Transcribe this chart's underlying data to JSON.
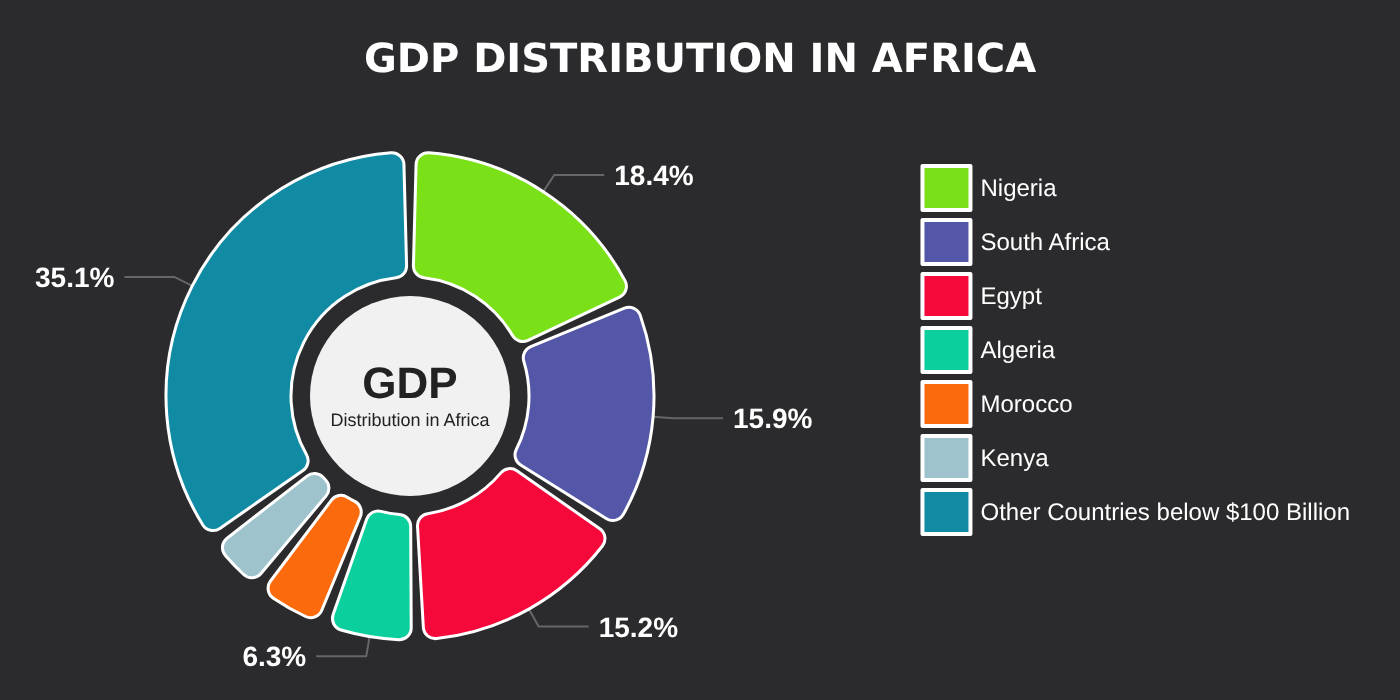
{
  "chart_data": {
    "type": "donut",
    "title": "GDP DISTRIBUTION IN AFRICA",
    "categories": [
      "Nigeria",
      "South Africa",
      "Egypt",
      "Algeria",
      "Morocco",
      "Kenya",
      "Other Countries below $100 Billion"
    ],
    "values": [
      18.4,
      15.9,
      15.2,
      6.3,
      4.9,
      4.2,
      35.1
    ],
    "value_labels": [
      "18.4%",
      "15.9%",
      "15.2%",
      "6.3%",
      null,
      null,
      "35.1%"
    ],
    "colors": [
      "#7ae118",
      "#5457a8",
      "#f5093a",
      "#0ccf9e",
      "#fb6b0d",
      "#9fc3cd",
      "#118ba3"
    ],
    "annotations": [
      "GDP",
      "Distribution in Africa"
    ],
    "legend": "right"
  }
}
